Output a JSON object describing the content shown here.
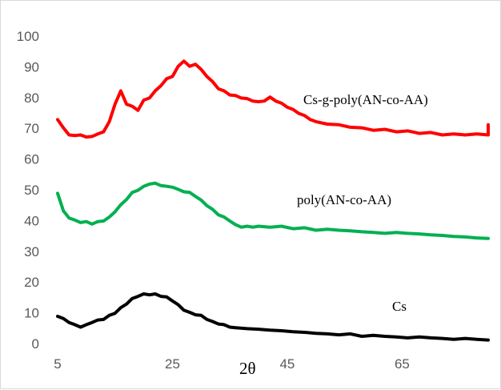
{
  "chart_data": {
    "type": "line",
    "xlabel": "2θ",
    "ylabel": "",
    "xlim": [
      5,
      80
    ],
    "ylim": [
      0,
      100
    ],
    "x_ticks": [
      "5",
      "25",
      "45",
      "65"
    ],
    "y_ticks": [
      "0",
      "10",
      "20",
      "30",
      "40",
      "50",
      "60",
      "70",
      "80",
      "90",
      "100"
    ],
    "grid": false,
    "legend": "none",
    "series": [
      {
        "name": "Cs-g-poly(AN-co-AA)",
        "color": "#ff0000",
        "x": [
          5,
          6,
          7,
          8,
          9,
          10,
          11,
          12,
          13,
          14,
          15,
          16,
          17,
          18,
          19,
          20,
          21,
          22,
          23,
          24,
          25,
          26,
          27,
          28,
          29,
          30,
          31,
          32,
          33,
          34,
          35,
          36,
          37,
          38,
          39,
          40,
          41,
          42,
          43,
          44,
          45,
          46,
          47,
          48,
          49,
          50,
          52,
          54,
          56,
          58,
          60,
          62,
          64,
          66,
          68,
          70,
          72,
          74,
          76,
          78,
          80,
          80
        ],
        "y": [
          73,
          70,
          68,
          67.5,
          68,
          67,
          67.5,
          68,
          69,
          72,
          78,
          82,
          78,
          77,
          76,
          79,
          80,
          82,
          84,
          86,
          87,
          90,
          92,
          90,
          91,
          89,
          87,
          85,
          83,
          82,
          81,
          80.5,
          80,
          79.5,
          79,
          78.5,
          79,
          80,
          79,
          78,
          77,
          76,
          75,
          74,
          73,
          72,
          71.5,
          71,
          70.5,
          70,
          69.5,
          69.5,
          69,
          69,
          68.5,
          68.5,
          68,
          68,
          68,
          68,
          68,
          71
        ]
      },
      {
        "name": "poly(AN-co-AA)",
        "color": "#00b050",
        "x": [
          5,
          6,
          7,
          8,
          9,
          10,
          11,
          12,
          13,
          14,
          15,
          16,
          17,
          18,
          19,
          20,
          21,
          22,
          23,
          24,
          25,
          26,
          27,
          28,
          29,
          30,
          31,
          32,
          33,
          34,
          35,
          36,
          37,
          38,
          39,
          40,
          42,
          44,
          46,
          48,
          50,
          52,
          54,
          56,
          58,
          60,
          62,
          64,
          66,
          68,
          70,
          72,
          74,
          76,
          78,
          80
        ],
        "y": [
          49,
          43,
          41,
          40,
          39.5,
          39.5,
          39,
          39.5,
          40,
          41,
          43,
          45,
          47,
          49,
          50,
          51,
          52,
          52,
          51.5,
          51,
          51,
          50,
          49.5,
          49,
          48,
          46.5,
          45,
          43.5,
          42,
          41,
          40,
          38.5,
          38,
          38,
          38,
          38,
          38,
          38,
          37.5,
          37.5,
          37,
          37,
          37,
          36.5,
          36.5,
          36,
          36,
          36,
          36,
          35.5,
          35.5,
          35,
          35,
          34.5,
          34.5,
          34
        ]
      },
      {
        "name": "Cs",
        "color": "#000000",
        "x": [
          5,
          6,
          7,
          8,
          9,
          10,
          11,
          12,
          13,
          14,
          15,
          16,
          17,
          18,
          19,
          20,
          21,
          22,
          23,
          24,
          25,
          26,
          27,
          28,
          29,
          30,
          31,
          32,
          33,
          34,
          35,
          36,
          38,
          40,
          42,
          44,
          46,
          48,
          50,
          52,
          54,
          56,
          58,
          60,
          62,
          64,
          66,
          68,
          70,
          72,
          74,
          76,
          78,
          80
        ],
        "y": [
          9,
          8,
          7,
          6,
          5.5,
          6,
          7,
          7.5,
          8,
          9,
          10,
          11.5,
          13,
          14.5,
          15.5,
          16,
          16,
          16,
          15.5,
          15,
          14,
          12.5,
          11,
          10,
          9.5,
          9,
          8,
          7,
          6.5,
          6,
          5.5,
          5,
          5,
          4.5,
          4.5,
          4,
          4,
          3.5,
          3.5,
          3,
          3,
          3,
          2.5,
          2.5,
          2.5,
          2,
          2,
          2,
          2,
          1.5,
          1.5,
          1.5,
          1.5,
          1
        ]
      }
    ],
    "annotations": [
      "Cs-g-poly(AN-co-AA)",
      "poly(AN-co-AA)",
      "Cs"
    ]
  }
}
